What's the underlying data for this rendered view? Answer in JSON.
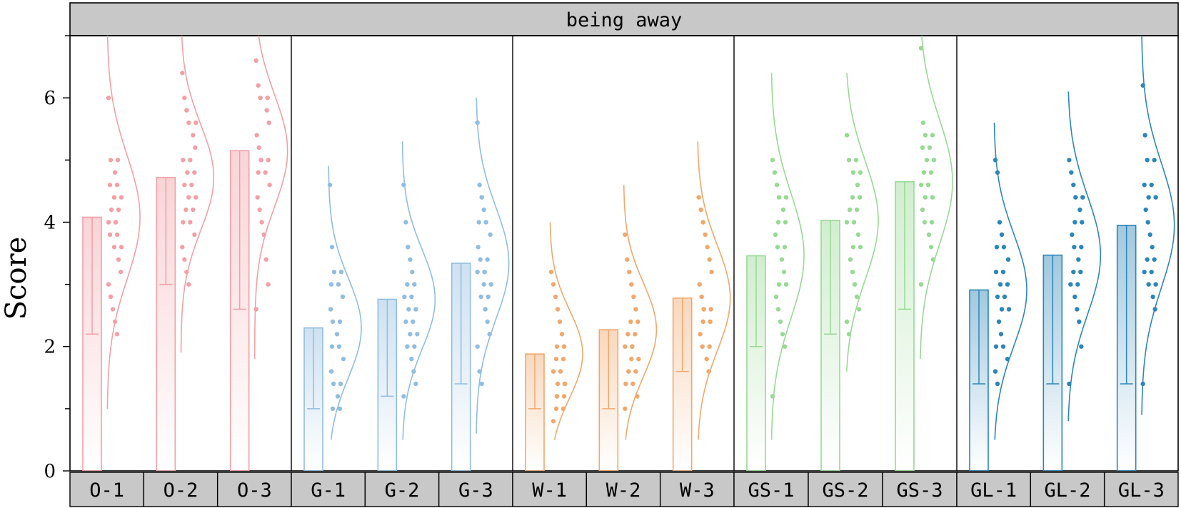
{
  "chart_data": {
    "type": "bar",
    "title": "being away",
    "ylabel": "Score",
    "xlabel": "",
    "ylim": [
      0,
      7
    ],
    "yticks": [
      0,
      2,
      4,
      6
    ],
    "grid": false,
    "groups": [
      {
        "color": "#f2a0a6",
        "categories": [
          "O-1",
          "O-2",
          "O-3"
        ]
      },
      {
        "color": "#91bde0",
        "categories": [
          "G-1",
          "G-2",
          "G-3"
        ]
      },
      {
        "color": "#f0a86d",
        "categories": [
          "W-1",
          "W-2",
          "W-3"
        ]
      },
      {
        "color": "#98d994",
        "categories": [
          "GS-1",
          "GS-2",
          "GS-3"
        ]
      },
      {
        "color": "#2d86b8",
        "categories": [
          "GL-1",
          "GL-2",
          "GL-3"
        ]
      }
    ],
    "categories": [
      "O-1",
      "O-2",
      "O-3",
      "G-1",
      "G-2",
      "G-3",
      "W-1",
      "W-2",
      "W-3",
      "GS-1",
      "GS-2",
      "GS-3",
      "GL-1",
      "GL-2",
      "GL-3"
    ],
    "values": [
      4.08,
      4.72,
      5.15,
      2.3,
      2.76,
      3.34,
      1.88,
      2.27,
      2.78,
      3.46,
      4.03,
      4.65,
      2.91,
      3.47,
      3.95
    ],
    "error_bars": [
      {
        "low": 2.2,
        "high": 4.08
      },
      {
        "low": 3.0,
        "high": 4.72
      },
      {
        "low": 2.6,
        "high": 5.15
      },
      {
        "low": 1.0,
        "high": 2.3
      },
      {
        "low": 1.2,
        "high": 2.76
      },
      {
        "low": 1.4,
        "high": 3.34
      },
      {
        "low": 1.0,
        "high": 1.88
      },
      {
        "low": 1.0,
        "high": 2.27
      },
      {
        "low": 1.6,
        "high": 2.78
      },
      {
        "low": 2.0,
        "high": 3.46
      },
      {
        "low": 2.2,
        "high": 4.03
      },
      {
        "low": 2.6,
        "high": 4.65
      },
      {
        "low": 1.4,
        "high": 2.91
      },
      {
        "low": 1.4,
        "high": 3.47
      },
      {
        "low": 1.4,
        "high": 3.95
      }
    ],
    "distributions": [
      {
        "sd": 1.0,
        "min": 1.0,
        "max": 7.0
      },
      {
        "sd": 0.85,
        "min": 1.9,
        "max": 7.0
      },
      {
        "sd": 0.9,
        "min": 1.8,
        "max": 7.0
      },
      {
        "sd": 0.8,
        "min": 0.5,
        "max": 4.9
      },
      {
        "sd": 0.8,
        "min": 0.5,
        "max": 5.3
      },
      {
        "sd": 0.9,
        "min": 0.6,
        "max": 6.0
      },
      {
        "sd": 0.7,
        "min": 0.5,
        "max": 4.0
      },
      {
        "sd": 0.75,
        "min": 0.5,
        "max": 4.6
      },
      {
        "sd": 0.85,
        "min": 0.5,
        "max": 5.3
      },
      {
        "sd": 1.0,
        "min": 0.5,
        "max": 6.4
      },
      {
        "sd": 0.95,
        "min": 1.6,
        "max": 6.4
      },
      {
        "sd": 1.0,
        "min": 1.8,
        "max": 7.0
      },
      {
        "sd": 0.9,
        "min": 0.5,
        "max": 5.6
      },
      {
        "sd": 0.95,
        "min": 0.8,
        "max": 6.1
      },
      {
        "sd": 1.0,
        "min": 0.9,
        "max": 7.0
      }
    ],
    "points": [
      [
        6.0,
        5.0,
        5.0,
        4.8,
        4.6,
        4.6,
        4.4,
        4.4,
        4.2,
        4.2,
        4.0,
        4.0,
        4.0,
        4.0,
        3.8,
        3.8,
        3.6,
        3.6,
        3.4,
        3.2,
        3.0,
        2.8,
        2.6,
        2.4,
        2.2
      ],
      [
        6.4,
        6.0,
        5.8,
        5.6,
        5.6,
        5.4,
        5.2,
        5.0,
        5.0,
        4.8,
        4.8,
        4.6,
        4.6,
        4.4,
        4.4,
        4.2,
        4.2,
        4.0,
        4.0,
        3.8,
        3.6,
        3.4,
        3.2,
        3.0
      ],
      [
        6.6,
        6.2,
        6.0,
        6.0,
        6.0,
        5.8,
        5.6,
        5.4,
        5.2,
        5.0,
        5.0,
        4.8,
        4.8,
        4.6,
        4.4,
        4.2,
        4.0,
        3.8,
        3.4,
        3.0,
        2.6
      ],
      [
        4.6,
        3.6,
        3.2,
        3.2,
        3.0,
        3.0,
        2.8,
        2.6,
        2.4,
        2.4,
        2.2,
        2.0,
        2.0,
        1.8,
        1.6,
        1.4,
        1.4,
        1.2,
        1.0,
        1.0
      ],
      [
        4.6,
        4.0,
        3.6,
        3.4,
        3.2,
        3.0,
        3.0,
        2.8,
        2.8,
        2.6,
        2.6,
        2.4,
        2.4,
        2.2,
        2.2,
        2.0,
        2.0,
        1.8,
        1.6,
        1.4,
        1.2
      ],
      [
        5.6,
        4.6,
        4.4,
        4.2,
        4.0,
        4.0,
        3.8,
        3.6,
        3.4,
        3.4,
        3.2,
        3.2,
        3.2,
        3.0,
        3.0,
        2.8,
        2.8,
        2.6,
        2.4,
        2.2,
        2.0,
        1.6,
        1.4
      ],
      [
        3.2,
        3.0,
        2.8,
        2.6,
        2.4,
        2.2,
        2.0,
        2.0,
        2.0,
        1.8,
        1.8,
        1.6,
        1.6,
        1.4,
        1.4,
        1.4,
        1.2,
        1.2,
        1.2,
        1.0,
        1.0,
        0.8
      ],
      [
        3.8,
        3.4,
        3.2,
        3.0,
        2.8,
        2.6,
        2.4,
        2.4,
        2.2,
        2.2,
        2.0,
        2.0,
        2.0,
        1.8,
        1.8,
        1.6,
        1.6,
        1.4,
        1.4,
        1.2,
        1.0
      ],
      [
        4.4,
        4.2,
        4.0,
        3.8,
        3.6,
        3.4,
        3.2,
        3.0,
        2.8,
        2.6,
        2.6,
        2.6,
        2.4,
        2.4,
        2.2,
        2.0,
        2.0,
        1.8,
        1.6
      ],
      [
        5.0,
        4.8,
        4.6,
        4.4,
        4.4,
        4.2,
        4.0,
        4.0,
        3.8,
        3.6,
        3.6,
        3.4,
        3.2,
        3.0,
        3.0,
        2.8,
        2.6,
        2.4,
        2.2,
        2.0,
        1.2
      ],
      [
        5.4,
        5.0,
        5.0,
        4.8,
        4.8,
        4.6,
        4.4,
        4.4,
        4.2,
        4.2,
        4.0,
        4.0,
        3.8,
        3.6,
        3.6,
        3.4,
        3.2,
        3.0,
        2.8,
        2.6,
        2.4,
        2.2
      ],
      [
        6.8,
        5.6,
        5.4,
        5.4,
        5.2,
        5.2,
        5.0,
        5.0,
        4.8,
        4.8,
        4.6,
        4.6,
        4.4,
        4.4,
        4.2,
        4.0,
        4.0,
        3.8,
        3.6,
        3.4,
        3.0
      ],
      [
        5.0,
        4.8,
        4.0,
        3.8,
        3.6,
        3.6,
        3.4,
        3.2,
        3.2,
        3.0,
        3.0,
        2.8,
        2.8,
        2.6,
        2.6,
        2.4,
        2.2,
        2.0,
        2.0,
        1.8,
        1.6,
        1.4
      ],
      [
        5.0,
        4.8,
        4.6,
        4.4,
        4.4,
        4.2,
        4.0,
        4.0,
        3.8,
        3.6,
        3.6,
        3.4,
        3.2,
        3.2,
        3.0,
        3.0,
        2.8,
        2.6,
        2.4,
        2.0,
        1.4
      ],
      [
        6.2,
        5.4,
        5.0,
        5.0,
        4.6,
        4.6,
        4.4,
        4.4,
        4.2,
        4.0,
        3.8,
        3.6,
        3.4,
        3.4,
        3.2,
        3.2,
        3.0,
        3.0,
        2.8,
        2.6,
        1.4
      ]
    ]
  }
}
